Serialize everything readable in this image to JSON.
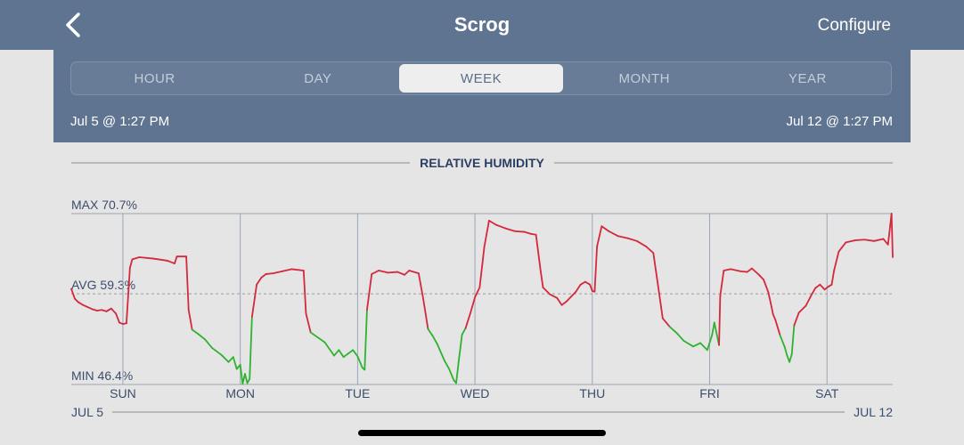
{
  "nav": {
    "title": "Scrog",
    "configure_label": "Configure",
    "back_icon": "chevron-left-icon"
  },
  "tabs": [
    {
      "label": "HOUR",
      "active": false
    },
    {
      "label": "DAY",
      "active": false
    },
    {
      "label": "WEEK",
      "active": true
    },
    {
      "label": "MONTH",
      "active": false
    },
    {
      "label": "YEAR",
      "active": false
    }
  ],
  "range": {
    "start": "Jul 5 @ 1:27 PM",
    "end": "Jul 12 @ 1:27 PM"
  },
  "colors": {
    "above_avg": "#d4283c",
    "below_avg": "#2fb22f",
    "header_bg": "#5f7491"
  },
  "chart_data": {
    "type": "line",
    "title": "RELATIVE HUMIDITY",
    "max_label": "MAX 70.7%",
    "avg_label": "AVG 59.3%",
    "min_label": "MIN 46.4%",
    "ylim": [
      46.4,
      70.7
    ],
    "avg": 59.3,
    "day_labels": [
      "SUN",
      "MON",
      "TUE",
      "WED",
      "THU",
      "FRI",
      "SAT"
    ],
    "start_date_label": "JUL 5",
    "end_date_label": "JUL 12",
    "x_unit": "days since Jul 5 1:27 PM",
    "xlim": [
      0,
      7
    ],
    "day_boundaries": [
      0.44,
      1.44,
      2.44,
      3.44,
      4.44,
      5.44,
      6.44
    ],
    "series": [
      {
        "points": [
          [
            0,
            60
          ],
          [
            0.03,
            58.6
          ],
          [
            0.06,
            58.1
          ],
          [
            0.1,
            57.7
          ],
          [
            0.14,
            57.4
          ],
          [
            0.18,
            57.1
          ],
          [
            0.22,
            56.9
          ],
          [
            0.26,
            57.0
          ],
          [
            0.3,
            56.8
          ],
          [
            0.34,
            57.2
          ],
          [
            0.38,
            56.5
          ],
          [
            0.41,
            55.2
          ],
          [
            0.44,
            55.0
          ],
          [
            0.47,
            55.1
          ],
          [
            0.5,
            63
          ],
          [
            0.52,
            64.2
          ],
          [
            0.58,
            64.5
          ],
          [
            0.7,
            64.3
          ],
          [
            0.82,
            64.0
          ],
          [
            0.88,
            63.6
          ],
          [
            0.9,
            64.6
          ],
          [
            0.98,
            64.6
          ],
          [
            1.0,
            57
          ],
          [
            1.03,
            54.2
          ],
          [
            1.08,
            53.6
          ],
          [
            1.14,
            52.8
          ],
          [
            1.2,
            51.6
          ],
          [
            1.28,
            50.6
          ],
          [
            1.34,
            49.6
          ],
          [
            1.38,
            50.3
          ],
          [
            1.41,
            48.6
          ],
          [
            1.44,
            49.2
          ],
          [
            1.46,
            46.5
          ],
          [
            1.48,
            47.9
          ],
          [
            1.5,
            46.6
          ],
          [
            1.52,
            47.2
          ],
          [
            1.54,
            56
          ],
          [
            1.58,
            60.6
          ],
          [
            1.62,
            61.6
          ],
          [
            1.66,
            62.1
          ],
          [
            1.72,
            62.2
          ],
          [
            1.8,
            62.5
          ],
          [
            1.88,
            62.8
          ],
          [
            1.98,
            62.6
          ],
          [
            2.0,
            56.5
          ],
          [
            2.04,
            53.8
          ],
          [
            2.1,
            53.1
          ],
          [
            2.16,
            52.4
          ],
          [
            2.24,
            50.5
          ],
          [
            2.28,
            51.3
          ],
          [
            2.32,
            50.3
          ],
          [
            2.36,
            50.8
          ],
          [
            2.4,
            51.3
          ],
          [
            2.44,
            50.4
          ],
          [
            2.48,
            48.8
          ],
          [
            2.5,
            48.5
          ],
          [
            2.52,
            57
          ],
          [
            2.56,
            62.1
          ],
          [
            2.62,
            62.6
          ],
          [
            2.7,
            62.3
          ],
          [
            2.78,
            62.4
          ],
          [
            2.84,
            62.0
          ],
          [
            2.88,
            62.6
          ],
          [
            2.96,
            62.2
          ],
          [
            3.0,
            58.5
          ],
          [
            3.04,
            54.3
          ],
          [
            3.08,
            53.3
          ],
          [
            3.12,
            52.1
          ],
          [
            3.18,
            49.8
          ],
          [
            3.22,
            48.6
          ],
          [
            3.26,
            47.0
          ],
          [
            3.28,
            46.6
          ],
          [
            3.3,
            49.5
          ],
          [
            3.33,
            53.5
          ],
          [
            3.36,
            54.4
          ],
          [
            3.4,
            56.5
          ],
          [
            3.44,
            58.8
          ],
          [
            3.48,
            60.2
          ],
          [
            3.52,
            66
          ],
          [
            3.56,
            69.7
          ],
          [
            3.62,
            69.1
          ],
          [
            3.7,
            68.6
          ],
          [
            3.78,
            68.2
          ],
          [
            3.86,
            68.1
          ],
          [
            3.92,
            67.8
          ],
          [
            3.96,
            67.7
          ],
          [
            4.0,
            62.5
          ],
          [
            4.02,
            60.2
          ],
          [
            4.08,
            59.2
          ],
          [
            4.14,
            58.7
          ],
          [
            4.18,
            57.7
          ],
          [
            4.22,
            58.2
          ],
          [
            4.26,
            58.9
          ],
          [
            4.3,
            59.6
          ],
          [
            4.34,
            60.6
          ],
          [
            4.38,
            61.0
          ],
          [
            4.42,
            60.6
          ],
          [
            4.44,
            59.7
          ],
          [
            4.46,
            59.6
          ],
          [
            4.48,
            66
          ],
          [
            4.52,
            68.9
          ],
          [
            4.58,
            68.2
          ],
          [
            4.66,
            67.5
          ],
          [
            4.74,
            67.2
          ],
          [
            4.82,
            66.8
          ],
          [
            4.9,
            66.0
          ],
          [
            4.96,
            65.1
          ],
          [
            5.0,
            60.5
          ],
          [
            5.04,
            55.8
          ],
          [
            5.1,
            54.6
          ],
          [
            5.16,
            53.7
          ],
          [
            5.22,
            52.6
          ],
          [
            5.3,
            51.8
          ],
          [
            5.36,
            52.3
          ],
          [
            5.42,
            51.3
          ],
          [
            5.46,
            53.4
          ],
          [
            5.48,
            55.2
          ],
          [
            5.52,
            52
          ],
          [
            5.53,
            59
          ],
          [
            5.56,
            62.6
          ],
          [
            5.62,
            62.8
          ],
          [
            5.7,
            62.5
          ],
          [
            5.76,
            62.4
          ],
          [
            5.8,
            62.9
          ],
          [
            5.86,
            62.0
          ],
          [
            5.9,
            61.3
          ],
          [
            5.94,
            59.5
          ],
          [
            5.96,
            58.0
          ],
          [
            5.98,
            56.4
          ],
          [
            6.0,
            55.6
          ],
          [
            6.04,
            53.4
          ],
          [
            6.08,
            51.7
          ],
          [
            6.1,
            50.5
          ],
          [
            6.12,
            49.6
          ],
          [
            6.14,
            50.7
          ],
          [
            6.16,
            54.8
          ],
          [
            6.2,
            56.6
          ],
          [
            6.26,
            57.6
          ],
          [
            6.3,
            58.9
          ],
          [
            6.34,
            60.1
          ],
          [
            6.38,
            60.6
          ],
          [
            6.42,
            59.9
          ],
          [
            6.45,
            60.3
          ],
          [
            6.48,
            60.6
          ],
          [
            6.5,
            62.6
          ],
          [
            6.54,
            65.3
          ],
          [
            6.6,
            66.6
          ],
          [
            6.68,
            66.9
          ],
          [
            6.76,
            67.0
          ],
          [
            6.84,
            66.8
          ],
          [
            6.92,
            67.1
          ],
          [
            6.96,
            66.3
          ],
          [
            6.99,
            70.7
          ],
          [
            7.0,
            64.5
          ]
        ]
      }
    ]
  }
}
